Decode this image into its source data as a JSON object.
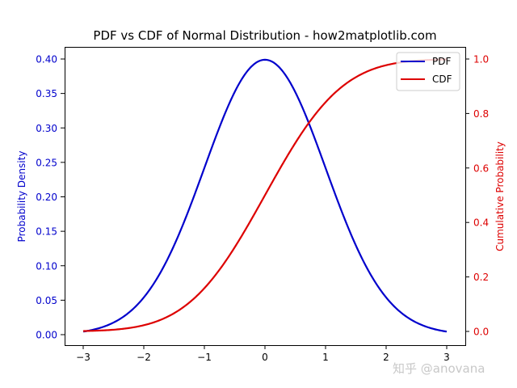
{
  "chart_data": {
    "type": "line",
    "title": "PDF vs CDF of Normal Distribution - how2matplotlib.com",
    "xlabel": "",
    "ylabel": "Probability Density",
    "ylabel_right": "Cumulative Probability",
    "xlim": [
      -3.3,
      3.3
    ],
    "ylim": [
      -0.0149,
      0.418
    ],
    "ylim_right": [
      -0.05,
      1.05
    ],
    "x_ticks": [
      "−3",
      "−2",
      "−1",
      "0",
      "1",
      "2",
      "3"
    ],
    "y_ticks": [
      "0.00",
      "0.05",
      "0.10",
      "0.15",
      "0.20",
      "0.25",
      "0.30",
      "0.35",
      "0.40"
    ],
    "y_ticks_right": [
      "0.0",
      "0.2",
      "0.4",
      "0.6",
      "0.8",
      "1.0"
    ],
    "grid": false,
    "legend_position": "upper right",
    "x": [
      -3,
      -2.5,
      -2,
      -1.5,
      -1,
      -0.5,
      0,
      0.5,
      1,
      1.5,
      2,
      2.5,
      3
    ],
    "series": [
      {
        "name": "PDF",
        "axis": "left",
        "color": "#0000cc",
        "values": [
          0.0044,
          0.0175,
          0.054,
          0.1295,
          0.242,
          0.3521,
          0.3989,
          0.3521,
          0.242,
          0.1295,
          0.054,
          0.0175,
          0.0044
        ]
      },
      {
        "name": "CDF",
        "axis": "right",
        "color": "#dd0000",
        "values": [
          0.0013,
          0.0062,
          0.0228,
          0.0668,
          0.1587,
          0.3085,
          0.5,
          0.6915,
          0.8413,
          0.9332,
          0.9772,
          0.9938,
          0.9987
        ]
      }
    ]
  },
  "legend": {
    "items": [
      {
        "label": "PDF",
        "color": "#0000cc"
      },
      {
        "label": "CDF",
        "color": "#dd0000"
      }
    ]
  },
  "colors": {
    "left_axis": "#0000cc",
    "right_axis": "#dd0000"
  },
  "watermark": "知乎 @anovana"
}
